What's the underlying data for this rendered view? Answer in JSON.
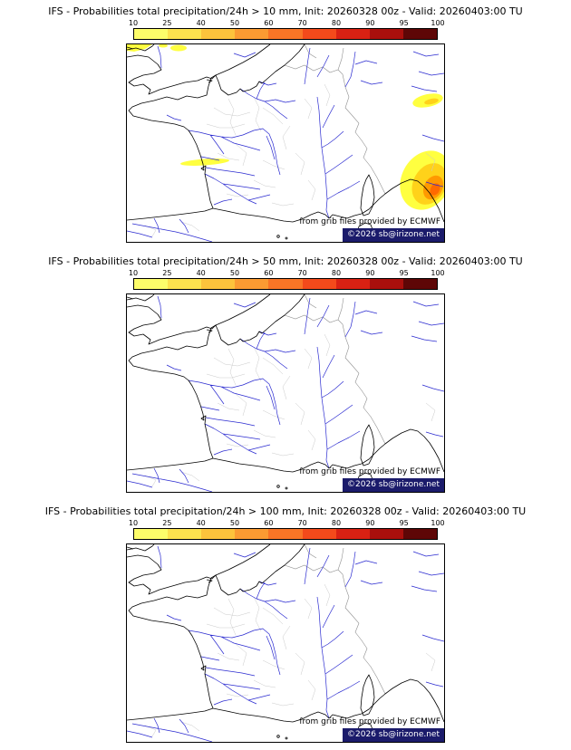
{
  "theme": {
    "coast_color": "#000000",
    "river_color": "#2a2ad0",
    "border_color": "#909090",
    "department_color": "#c9c9c9",
    "blob_l1": "#ffff40",
    "blob_l2": "#ffd21a",
    "blob_l3": "#ff9900",
    "blob_l4": "#ff6a00",
    "copyright_bg": "#1b1b6b",
    "copyright_text": "#ffffff"
  },
  "colorbar": {
    "ticks": [
      "10",
      "25",
      "40",
      "50",
      "60",
      "70",
      "80",
      "90",
      "95",
      "100"
    ],
    "segment_colors": [
      "#fdfd6a",
      "#fde24e",
      "#fdc33c",
      "#fb9b32",
      "#f97526",
      "#f34a1b",
      "#d92113",
      "#a90f0c",
      "#5e0606"
    ]
  },
  "credits": {
    "source": "from grib files provided by ECMWF",
    "copyright": "©2026 sb@irizone.net"
  },
  "panels": [
    {
      "title": "IFS - Probabilities total precipitation/24h > 10 mm, Init: 20260328 00z - Valid: 20260403:00 TU",
      "threshold_mm": "10"
    },
    {
      "title": "IFS - Probabilities total precipitation/24h > 50 mm, Init: 20260328 00z - Valid: 20260403:00 TU",
      "threshold_mm": "50"
    },
    {
      "title": "IFS - Probabilities total precipitation/24h > 100 mm, Init: 20260328 00z - Valid: 20260403:00 TU",
      "threshold_mm": "100"
    }
  ]
}
